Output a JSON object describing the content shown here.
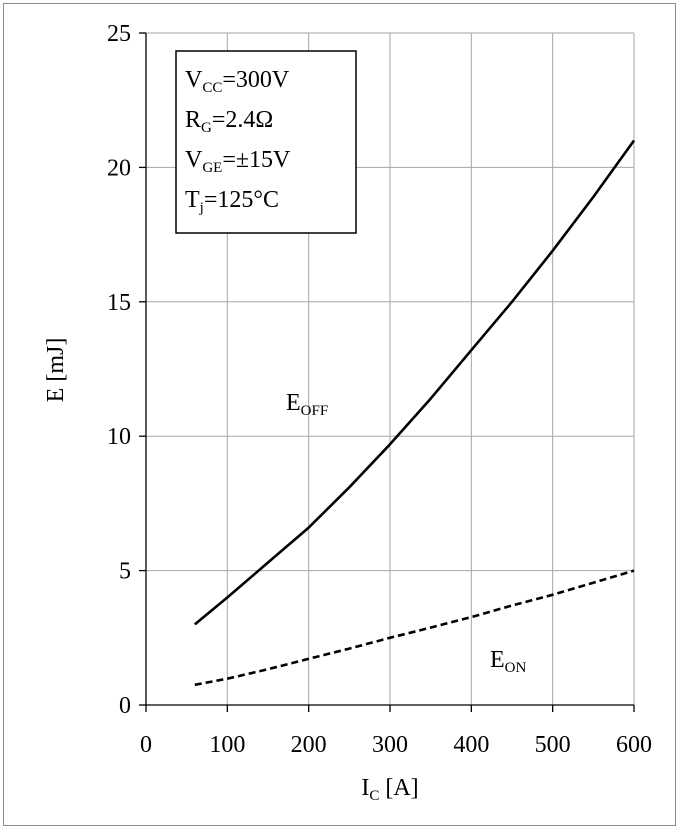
{
  "chart_data": {
    "type": "line",
    "xlabel": {
      "main": "I",
      "sub": "C",
      "unit": " [A]"
    },
    "ylabel": "E [mJ]",
    "xlim": [
      0,
      600
    ],
    "ylim": [
      0,
      25
    ],
    "grid": true,
    "x_ticks": [
      "0",
      "100",
      "200",
      "300",
      "400",
      "500",
      "600"
    ],
    "y_ticks": [
      "0",
      "5",
      "10",
      "15",
      "20",
      "25"
    ],
    "series": [
      {
        "name": "EOFF",
        "line_style": "solid",
        "color": "#000000",
        "points": [
          [
            60,
            3.0
          ],
          [
            100,
            4.0
          ],
          [
            150,
            5.3
          ],
          [
            200,
            6.6
          ],
          [
            250,
            8.1
          ],
          [
            300,
            9.7
          ],
          [
            350,
            11.4
          ],
          [
            400,
            13.2
          ],
          [
            450,
            15.0
          ],
          [
            500,
            16.9
          ],
          [
            550,
            18.9
          ],
          [
            600,
            21.0
          ]
        ]
      },
      {
        "name": "EON",
        "line_style": "dashed",
        "color": "#000000",
        "points": [
          [
            60,
            0.75
          ],
          [
            100,
            0.98
          ],
          [
            150,
            1.33
          ],
          [
            200,
            1.72
          ],
          [
            250,
            2.1
          ],
          [
            300,
            2.5
          ],
          [
            350,
            2.88
          ],
          [
            400,
            3.27
          ],
          [
            450,
            3.7
          ],
          [
            500,
            4.1
          ],
          [
            550,
            4.55
          ],
          [
            600,
            5.0
          ]
        ]
      }
    ],
    "series_labels": {
      "EOFF": {
        "main": "E",
        "sub": "OFF"
      },
      "EON": {
        "main": "E",
        "sub": "ON"
      }
    },
    "conditions": [
      {
        "main": "V",
        "sub": "CC",
        "rest": "=300V"
      },
      {
        "main": "R",
        "sub": "G",
        "rest": "=2.4Ω"
      },
      {
        "main": "V",
        "sub": "GE",
        "rest": "=±15V"
      },
      {
        "main": "T",
        "sub": "j",
        "rest": "=125°C"
      }
    ],
    "colors": {
      "grid": "#a6a6a6",
      "axis": "#000000",
      "frame": "#8c8c8c"
    }
  }
}
